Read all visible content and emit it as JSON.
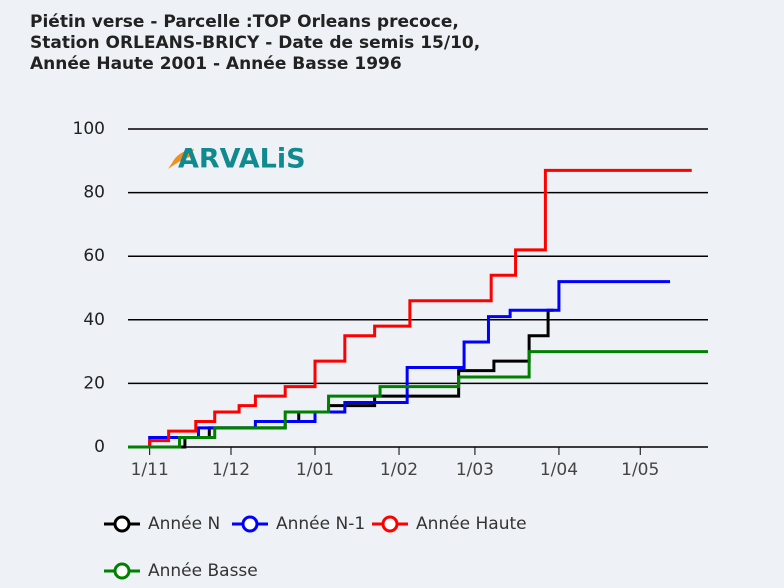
{
  "chart_data": {
    "type": "step",
    "title": [
      "Piétin verse - Parcelle :TOP Orleans precoce,",
      "Station ORLEANS-BRICY - Date de semis 15/10,",
      "Année Haute 2001 - Année Basse 1996"
    ],
    "logo": "ARVALiS",
    "xlim": [
      "24/10",
      "26/05"
    ],
    "xticks": [
      "1/11",
      "1/12",
      "1/01",
      "1/02",
      "1/03",
      "1/04",
      "1/05"
    ],
    "ylim": [
      0,
      100
    ],
    "yticks": [
      0,
      20,
      40,
      60,
      80,
      100
    ],
    "grid": true,
    "series": [
      {
        "name": "Année N",
        "color": "#000000",
        "x": [
          "24/10",
          "14/11",
          "23/11",
          "21/12",
          "26/12",
          "6/01",
          "23/01",
          "23/02",
          "8/03",
          "21/03",
          "28/03",
          "30/03"
        ],
        "values": [
          0,
          3,
          6,
          8,
          11,
          13,
          16,
          24,
          27,
          35,
          43,
          43
        ]
      },
      {
        "name": "Année N-1",
        "color": "#0000ff",
        "x": [
          "24/10",
          "1/11",
          "19/11",
          "10/12",
          "1/01",
          "12/01",
          "4/02",
          "25/02",
          "6/03",
          "14/03",
          "1/04",
          "12/05"
        ],
        "values": [
          0,
          3,
          6,
          8,
          11,
          14,
          25,
          33,
          41,
          43,
          52,
          52
        ]
      },
      {
        "name": "Année Haute",
        "color": "#ff0000",
        "x": [
          "24/10",
          "1/11",
          "8/11",
          "18/11",
          "25/11",
          "4/12",
          "10/12",
          "21/12",
          "1/01",
          "12/01",
          "23/01",
          "5/02",
          "7/03",
          "16/03",
          "27/03",
          "20/05"
        ],
        "values": [
          0,
          2,
          5,
          8,
          11,
          13,
          16,
          19,
          27,
          35,
          38,
          46,
          54,
          62,
          87,
          87
        ]
      },
      {
        "name": "Année Basse",
        "color": "#008000",
        "x": [
          "24/10",
          "12/11",
          "25/11",
          "21/12",
          "6/01",
          "25/01",
          "23/02",
          "21/03",
          "26/05"
        ],
        "values": [
          0,
          3,
          6,
          11,
          16,
          19,
          22,
          30,
          30
        ]
      }
    ]
  }
}
